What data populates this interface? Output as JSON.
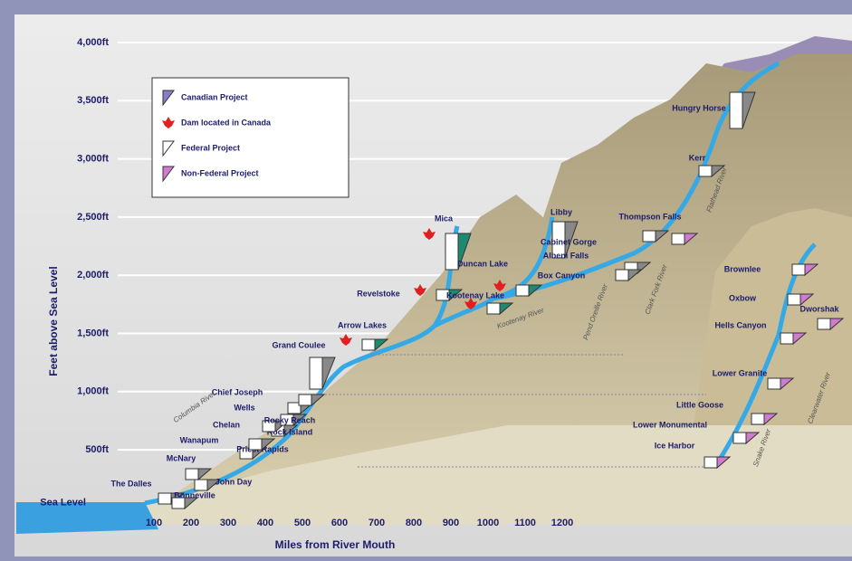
{
  "y_axis": {
    "title": "Feet above Sea Level",
    "ticks": [
      "4,000ft",
      "3,500ft",
      "3,000ft",
      "2,500ft",
      "2,000ft",
      "1,500ft",
      "1,000ft",
      "500ft",
      "Sea Level"
    ]
  },
  "x_axis": {
    "title": "Miles from River Mouth",
    "ticks": [
      "100",
      "200",
      "300",
      "400",
      "500",
      "600",
      "700",
      "800",
      "900",
      "1000",
      "1100",
      "1200"
    ]
  },
  "legend": {
    "items": [
      "Canadian Project",
      "Dam located in Canada",
      "Federal Project",
      "Non-Federal Project"
    ]
  },
  "dams": [
    "The Dalles",
    "Bonneville",
    "John Day",
    "McNary",
    "Priest Rapids",
    "Wanapum",
    "Rock Island",
    "Chelan",
    "Rocky Reach",
    "Wells",
    "Chief Joseph",
    "Grand Coulee",
    "Arrow Lakes",
    "Revelstoke",
    "Mica",
    "Duncan Lake",
    "Kootenay Lake",
    "Libby",
    "Cabinet Gorge",
    "Albeni Falls",
    "Box Canyon",
    "Thompson Falls",
    "Kerr",
    "Hungry Horse",
    "Brownlee",
    "Oxbow",
    "Hells Canyon",
    "Dworshak",
    "Lower Granite",
    "Little Goose",
    "Lower Monumental",
    "Ice Harbor"
  ],
  "rivers": [
    "Columbia River",
    "Kootenay River",
    "Pend Oreille River",
    "Clark Fork River",
    "Flathead River",
    "Snake River",
    "Clearwater River"
  ]
}
